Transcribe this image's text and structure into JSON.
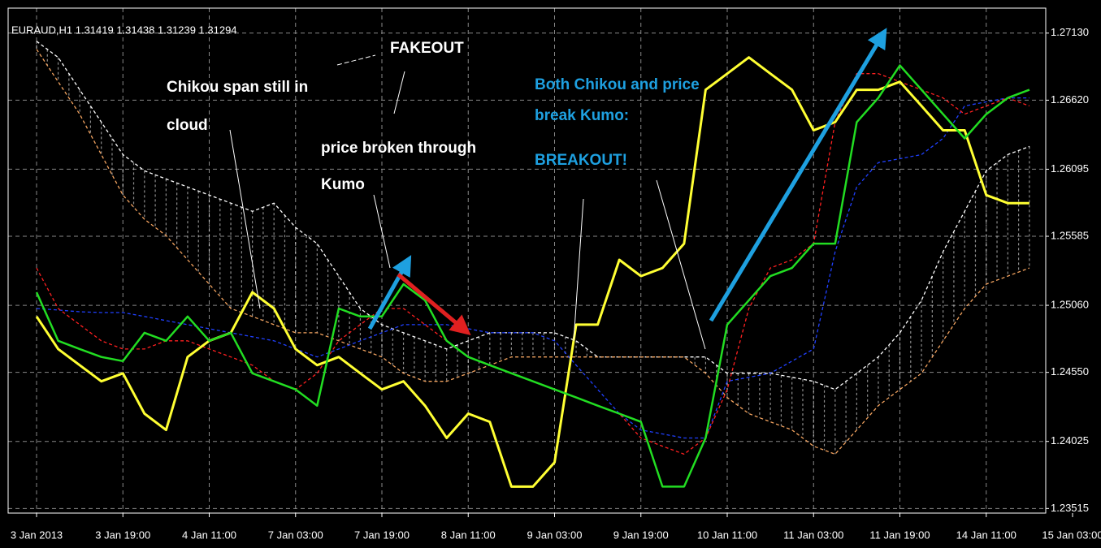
{
  "chart_data": {
    "type": "line",
    "title": "EURAUD,H1  1.31419 1.31438 1.31239 1.31294",
    "categories": [
      "3 Jan 2013",
      null,
      null,
      null,
      "3 Jan 19:00",
      null,
      null,
      null,
      "4 Jan 11:00",
      null,
      null,
      null,
      "7 Jan 03:00",
      null,
      null,
      null,
      "7 Jan 19:00",
      null,
      null,
      null,
      "8 Jan 11:00",
      null,
      null,
      null,
      "9 Jan 03:00",
      null,
      null,
      null,
      "9 Jan 19:00",
      null,
      null,
      null,
      "10 Jan 11:00",
      null,
      null,
      null,
      "11 Jan 03:00",
      null,
      null,
      null,
      "11 Jan 19:00",
      null,
      null,
      null,
      "14 Jan 11:00",
      null,
      null,
      null,
      "15 Jan 03:00"
    ],
    "series": [
      {
        "color": "#22dd22",
        "values": [
          1.25159,
          1.2479,
          1.24728,
          1.24667,
          1.24636,
          1.24851,
          1.2479,
          1.24975,
          1.2479,
          1.24851,
          1.24543,
          1.24482,
          1.2442,
          1.24297,
          1.25036,
          1.24975,
          1.24975,
          1.25221,
          1.25098,
          1.2479,
          1.24667,
          1.24605,
          1.24543,
          1.24482,
          1.2442,
          1.24359,
          1.24297,
          1.24236,
          1.24174,
          1.23681,
          1.23681,
          1.24051,
          1.24913,
          1.25098,
          1.25282,
          1.25344,
          1.25529,
          1.25529,
          1.26453,
          1.26637,
          1.26884,
          1.26699,
          1.26514,
          1.26329,
          1.26514,
          1.26637,
          1.26699,
          null,
          null
        ]
      },
      {
        "color": "#ffff33",
        "values": [
          1.24975,
          1.24728,
          1.24605,
          1.24482,
          1.24543,
          1.24236,
          1.24112,
          1.24667,
          1.2479,
          1.24851,
          1.25159,
          1.25036,
          1.24728,
          1.24605,
          1.24667,
          1.24543,
          1.2442,
          1.24482,
          1.24297,
          1.24051,
          1.24236,
          1.24174,
          1.23681,
          1.23681,
          1.23866,
          1.24913,
          1.24913,
          1.25406,
          1.25282,
          1.25344,
          1.25529,
          1.26699,
          1.26822,
          1.26945,
          1.26822,
          1.26699,
          1.26391,
          1.26453,
          1.26699,
          1.26699,
          1.2676,
          1.26576,
          1.26391,
          1.26391,
          1.25898,
          1.25837,
          1.25837,
          null,
          null
        ]
      },
      {
        "color": "#ff2020",
        "dashed": true,
        "values": [
          1.25344,
          1.25036,
          1.24913,
          1.2479,
          1.24728,
          1.24728,
          1.2479,
          1.2479,
          1.24728,
          1.24667,
          1.24605,
          1.24482,
          1.2442,
          1.24543,
          1.2479,
          1.24913,
          1.25036,
          1.25036,
          1.24913,
          1.2479,
          1.24667,
          1.24605,
          1.24543,
          1.24482,
          1.2442,
          1.24359,
          1.24297,
          1.24236,
          1.24051,
          1.23989,
          1.23928,
          1.24051,
          1.2442,
          1.25036,
          1.25344,
          1.25406,
          1.25529,
          1.26453,
          1.26822,
          1.26822,
          1.2676,
          1.26699,
          1.26637,
          1.26514,
          1.26576,
          1.26637,
          1.26576,
          null,
          null
        ]
      },
      {
        "color": "#2040ff",
        "dashed": true,
        "values": [
          1.25036,
          1.25024,
          1.25011,
          1.25005,
          1.25005,
          1.24975,
          1.24944,
          1.24913,
          1.24882,
          1.24851,
          1.24821,
          1.2479,
          1.24728,
          1.24667,
          1.24728,
          1.2479,
          1.24851,
          1.24913,
          1.24913,
          1.24913,
          1.24882,
          1.24851,
          1.24851,
          1.24851,
          1.2479,
          1.24605,
          1.2442,
          1.24236,
          1.24112,
          1.24082,
          1.24051,
          1.24051,
          1.24482,
          1.24513,
          1.24543,
          1.24636,
          1.24728,
          1.25467,
          1.2596,
          1.26145,
          1.26175,
          1.26206,
          1.26329,
          1.26576,
          1.26607,
          1.26637,
          1.26637,
          null,
          null
        ]
      },
      {
        "color": "#ffffff",
        "dashed": true,
        "values": [
          1.27068,
          1.26945,
          1.26699,
          1.26453,
          1.26206,
          1.26083,
          1.26021,
          1.2596,
          1.25898,
          1.25837,
          1.25775,
          1.25837,
          1.25652,
          1.25529,
          1.25282,
          1.25036,
          1.24913,
          1.24851,
          1.2479,
          1.24728,
          1.2479,
          1.24851,
          1.24851,
          1.24851,
          1.24851,
          1.2479,
          1.24667,
          1.24667,
          1.24667,
          1.24667,
          1.24667,
          1.24667,
          1.24543,
          1.24543,
          1.24543,
          1.24513,
          1.24482,
          1.2442,
          1.24543,
          1.24667,
          1.24851,
          1.25098,
          1.25467,
          1.25775,
          1.26083,
          1.26206,
          1.26268,
          null,
          null
        ]
      },
      {
        "color": "#f4a460",
        "dashed": true,
        "values": [
          1.27007,
          1.2676,
          1.26514,
          1.26206,
          1.25898,
          1.25714,
          1.2559,
          1.25406,
          1.25221,
          1.25036,
          1.24975,
          1.24913,
          1.24851,
          1.24851,
          1.2479,
          1.24728,
          1.24667,
          1.24543,
          1.24482,
          1.24482,
          1.24543,
          1.24605,
          1.24667,
          1.24667,
          1.24667,
          1.24667,
          1.24667,
          1.24667,
          1.24667,
          1.24667,
          1.24667,
          1.24543,
          1.24359,
          1.24236,
          1.24174,
          1.24112,
          1.23989,
          1.23928,
          1.24112,
          1.24297,
          1.2442,
          1.24543,
          1.2479,
          1.25036,
          1.25221,
          1.25282,
          1.25344,
          null,
          null
        ]
      }
    ],
    "ylim": [
      1.2348,
      1.2732
    ],
    "yticks": [
      {
        "value": 1.2713,
        "label": "1.27130"
      },
      {
        "value": 1.2662,
        "label": "1.26620"
      },
      {
        "value": 1.26095,
        "label": "1.26095"
      },
      {
        "value": 1.25585,
        "label": "1.25585"
      },
      {
        "value": 1.2506,
        "label": "1.25060"
      },
      {
        "value": 1.2455,
        "label": "1.24550"
      },
      {
        "value": 1.24025,
        "label": "1.24025"
      },
      {
        "value": 1.23515,
        "label": "1.23515"
      }
    ],
    "grid": true,
    "annotations": [
      "FAKEOUT",
      "Chikou span still in",
      "cloud",
      "price broken through",
      "Kumo",
      "Both Chikou and price",
      "break Kumo:",
      "BREAKOUT!"
    ]
  }
}
